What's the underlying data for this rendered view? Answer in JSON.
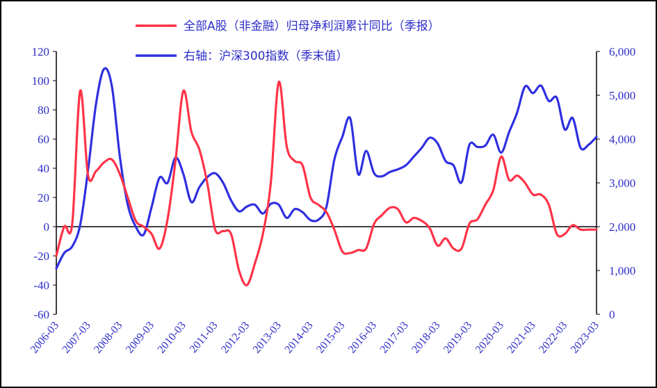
{
  "chart_data": {
    "type": "line",
    "title": "",
    "xlabel": "",
    "ylabel_left": "",
    "ylabel_right": "",
    "legend_placement": "top",
    "grid": false,
    "x_tick_labels": [
      "2006-03",
      "2007-03",
      "2008-03",
      "2009-03",
      "2010-03",
      "2011-03",
      "2012-03",
      "2013-03",
      "2014-03",
      "2015-03",
      "2016-03",
      "2017-03",
      "2018-03",
      "2019-03",
      "2020-03",
      "2021-03",
      "2022-03",
      "2023-03"
    ],
    "y_left": {
      "range": [
        -60,
        120
      ],
      "ticks": [
        -60,
        -40,
        -20,
        0,
        20,
        40,
        60,
        80,
        100,
        120
      ],
      "tick_labels": [
        "-60",
        "-40",
        "-20",
        "0",
        "20",
        "40",
        "60",
        "80",
        "100",
        "120"
      ],
      "color": "#2d2dc8"
    },
    "y_right": {
      "range": [
        0,
        6000
      ],
      "ticks": [
        0,
        1000,
        2000,
        3000,
        4000,
        5000,
        6000
      ],
      "tick_labels": [
        "0",
        "1,000",
        "2,000",
        "3,000",
        "4,000",
        "5,000",
        "6,000"
      ],
      "color": "#2d2dc8"
    },
    "series": [
      {
        "name": "全部A股（非金融）归母净利润累计同比（季报）",
        "axis": "left",
        "color": "#ff3348",
        "x": [
          "2006-03",
          "2006-06",
          "2006-09",
          "2006-12",
          "2007-03",
          "2007-06",
          "2007-09",
          "2007-12",
          "2008-03",
          "2008-06",
          "2008-09",
          "2008-12",
          "2009-03",
          "2009-06",
          "2009-09",
          "2009-12",
          "2010-03",
          "2010-06",
          "2010-09",
          "2010-12",
          "2011-03",
          "2011-06",
          "2011-09",
          "2011-12",
          "2012-03",
          "2012-06",
          "2012-09",
          "2012-12",
          "2013-03",
          "2013-06",
          "2013-09",
          "2013-12",
          "2014-03",
          "2014-06",
          "2014-09",
          "2014-12",
          "2015-03",
          "2015-06",
          "2015-09",
          "2015-12",
          "2016-03",
          "2016-06",
          "2016-09",
          "2016-12",
          "2017-03",
          "2017-06",
          "2017-09",
          "2017-12",
          "2018-03",
          "2018-06",
          "2018-09",
          "2018-12",
          "2019-03",
          "2019-06",
          "2019-09",
          "2019-12",
          "2020-03",
          "2020-06",
          "2020-09",
          "2020-12",
          "2021-03",
          "2021-06",
          "2021-09",
          "2021-12",
          "2022-03",
          "2022-06",
          "2022-09",
          "2022-12",
          "2023-03"
        ],
        "values": [
          -20,
          0,
          2,
          93,
          35,
          38,
          44,
          46,
          36,
          20,
          4,
          0,
          -5,
          -15,
          5,
          45,
          93,
          65,
          53,
          30,
          -2,
          -3,
          -5,
          -30,
          -40,
          -25,
          -5,
          30,
          99,
          55,
          45,
          42,
          20,
          15,
          10,
          -2,
          -17,
          -18,
          -16,
          -15,
          2,
          8,
          13,
          12,
          3,
          6,
          4,
          -1,
          -13,
          -8,
          -15,
          -15,
          2,
          5,
          15,
          25,
          48,
          32,
          35,
          30,
          22,
          22,
          15,
          -5,
          -5,
          1,
          -2,
          -2,
          -2
        ]
      },
      {
        "name": "右轴：沪深300指数（季末值）",
        "axis": "right",
        "color": "#2f2fe0",
        "x": [
          "2006-03",
          "2006-06",
          "2006-09",
          "2006-12",
          "2007-03",
          "2007-06",
          "2007-09",
          "2007-12",
          "2008-03",
          "2008-06",
          "2008-09",
          "2008-12",
          "2009-03",
          "2009-06",
          "2009-09",
          "2009-12",
          "2010-03",
          "2010-06",
          "2010-09",
          "2010-12",
          "2011-03",
          "2011-06",
          "2011-09",
          "2011-12",
          "2012-03",
          "2012-06",
          "2012-09",
          "2012-12",
          "2013-03",
          "2013-06",
          "2013-09",
          "2013-12",
          "2014-03",
          "2014-06",
          "2014-09",
          "2014-12",
          "2015-03",
          "2015-06",
          "2015-09",
          "2015-12",
          "2016-03",
          "2016-06",
          "2016-09",
          "2016-12",
          "2017-03",
          "2017-06",
          "2017-09",
          "2017-12",
          "2018-03",
          "2018-06",
          "2018-09",
          "2018-12",
          "2019-03",
          "2019-06",
          "2019-09",
          "2019-12",
          "2020-03",
          "2020-06",
          "2020-09",
          "2020-12",
          "2021-03",
          "2021-06",
          "2021-09",
          "2021-12",
          "2022-03",
          "2022-06",
          "2022-09",
          "2022-12",
          "2023-03"
        ],
        "values": [
          1050,
          1400,
          1550,
          2040,
          3300,
          4800,
          5600,
          5200,
          3600,
          2500,
          2000,
          1820,
          2450,
          3120,
          3000,
          3575,
          3200,
          2560,
          2900,
          3130,
          3220,
          3000,
          2600,
          2350,
          2460,
          2500,
          2300,
          2520,
          2500,
          2200,
          2400,
          2330,
          2150,
          2160,
          2450,
          3530,
          4050,
          4470,
          3200,
          3730,
          3220,
          3150,
          3250,
          3310,
          3400,
          3600,
          3800,
          4030,
          3900,
          3500,
          3400,
          3010,
          3870,
          3820,
          3850,
          4100,
          3690,
          4160,
          4600,
          5200,
          5050,
          5220,
          4870,
          4940,
          4220,
          4480,
          3800,
          3870,
          4050
        ]
      }
    ]
  }
}
